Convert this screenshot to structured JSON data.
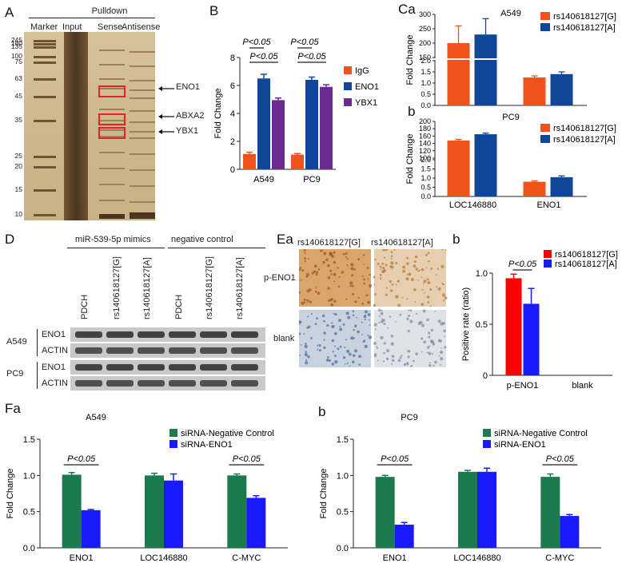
{
  "panelA": {
    "label": "A",
    "title": "Pulldown",
    "lanes": [
      "Marker",
      "Input",
      "Sense",
      "Antisense"
    ],
    "markers": [
      "245",
      "180",
      "135",
      "100",
      "75",
      "63",
      "45",
      "35",
      "25",
      "20",
      "15",
      "10"
    ],
    "bands": [
      "ENO1",
      "ABXA2",
      "YBX1"
    ]
  },
  "panelB": {
    "label": "B",
    "chart_data": {
      "type": "bar",
      "ylabel": "Fold Change",
      "categories": [
        "A549",
        "PC9"
      ],
      "series": [
        {
          "name": "IgG",
          "values": [
            1.1,
            1.05
          ],
          "errors": [
            0.12,
            0.08
          ],
          "color": "#f0521e"
        },
        {
          "name": "ENO1",
          "values": [
            6.5,
            6.4
          ],
          "errors": [
            0.3,
            0.2
          ],
          "color": "#10469a"
        },
        {
          "name": "YBX1",
          "values": [
            4.95,
            5.9
          ],
          "errors": [
            0.15,
            0.15
          ],
          "color": "#6a2c91"
        }
      ],
      "ylim": [
        0,
        8
      ],
      "yticks": [
        "0",
        "2",
        "4",
        "6",
        "8"
      ],
      "annotations": [
        "P<0.05",
        "P<0.05",
        "P<0.05",
        "P<0.05"
      ]
    }
  },
  "panelC": {
    "label": "Ca",
    "sublabel": "b",
    "charts": [
      {
        "title": "A549",
        "type": "bar",
        "ylabel": "Fold Change",
        "categories": [
          "LOC146880",
          "ENO1"
        ],
        "series": [
          {
            "name": "rs140618127[G]",
            "values": [
              200,
              1.25
            ],
            "errors": [
              60,
              0.07
            ],
            "color": "#f0521e"
          },
          {
            "name": "rs140618127[A]",
            "values": [
              230,
              1.4
            ],
            "errors": [
              55,
              0.1
            ],
            "color": "#10469a"
          }
        ],
        "yticks_top": [
          "150",
          "200",
          "250",
          "300"
        ],
        "yticks_bottom": [
          "0.0",
          "0.5",
          "1.0",
          "1.5",
          "2.0"
        ]
      },
      {
        "title": "PC9",
        "type": "bar",
        "ylabel": "Fold Change",
        "categories": [
          "LOC146880",
          "ENO1"
        ],
        "series": [
          {
            "name": "rs140618127[G]",
            "values": [
              148,
              0.8
            ],
            "errors": [
              3,
              0.05
            ],
            "color": "#f0521e"
          },
          {
            "name": "rs140618127[A]",
            "values": [
              165,
              1.05
            ],
            "errors": [
              3,
              0.07
            ],
            "color": "#10469a"
          }
        ],
        "yticks_top": [
          "100",
          "120",
          "140",
          "160",
          "180",
          "200"
        ],
        "yticks_bottom": [
          "0.0",
          "0.5",
          "1.0",
          "1.5",
          "2.0"
        ]
      }
    ]
  },
  "panelD": {
    "label": "D",
    "group1": "miR-539-5p mimics",
    "group2": "negative control",
    "lanes": [
      "PDCH",
      "rs140618127[G]",
      "rs140618127[A]",
      "PDCH",
      "rs140618127[G]",
      "rs140618127[A]"
    ],
    "cells": [
      "A549",
      "PC9"
    ],
    "proteins": [
      "ENO1",
      "ACTIN"
    ]
  },
  "panelE": {
    "label": "Ea",
    "sublabel": "b",
    "cols": [
      "rs140618127[G]",
      "rs140618127[A]"
    ],
    "rows": [
      "p-ENO1",
      "blank"
    ],
    "chart_data": {
      "type": "bar",
      "ylabel": "Positive rate (ratio)",
      "categories": [
        "p-ENO1",
        "blank"
      ],
      "series": [
        {
          "name": "rs140618127[G]",
          "values": [
            0.95,
            0
          ],
          "errors": [
            0.04,
            0
          ],
          "color": "#ff0000"
        },
        {
          "name": "rs140618127[A]",
          "values": [
            0.7,
            0
          ],
          "errors": [
            0.15,
            0
          ],
          "color": "#1a1aff"
        }
      ],
      "ylim": [
        0,
        1
      ],
      "yticks": [
        "0",
        "0.5",
        "1.0"
      ],
      "annotations": [
        "P<0.05"
      ]
    }
  },
  "panelF": {
    "label": "Fa",
    "sublabel": "b",
    "charts": [
      {
        "title": "A549",
        "type": "bar",
        "ylabel": "Fold Change",
        "categories": [
          "ENO1",
          "LOC146880",
          "C-MYC"
        ],
        "series": [
          {
            "name": "siRNA-Negative Control",
            "values": [
              1.01,
              1.0,
              1.0
            ],
            "errors": [
              0.03,
              0.03,
              0.02
            ],
            "color": "#1b7a4e"
          },
          {
            "name": "siRNA-ENO1",
            "values": [
              0.52,
              0.93,
              0.69
            ],
            "errors": [
              0.01,
              0.09,
              0.03
            ],
            "color": "#1a1aff"
          }
        ],
        "ylim": [
          0,
          1.5
        ],
        "yticks": [
          "0.0",
          "0.5",
          "1.0",
          "1.5"
        ],
        "annotations": [
          "P<0.05",
          "P<0.05"
        ]
      },
      {
        "title": "PC9",
        "type": "bar",
        "ylabel": "Fold Change",
        "categories": [
          "ENO1",
          "LOC146880",
          "C-MYC"
        ],
        "series": [
          {
            "name": "siRNA-Negative Control",
            "values": [
              0.98,
              1.05,
              0.98
            ],
            "errors": [
              0.02,
              0.02,
              0.04
            ],
            "color": "#1b7a4e"
          },
          {
            "name": "siRNA-ENO1",
            "values": [
              0.32,
              1.05,
              0.44
            ],
            "errors": [
              0.03,
              0.05,
              0.02
            ],
            "color": "#1a1aff"
          }
        ],
        "ylim": [
          0,
          1.5
        ],
        "yticks": [
          "0.0",
          "0.5",
          "1.0",
          "1.5"
        ],
        "annotations": [
          "P<0.05",
          "P<0.05"
        ]
      }
    ]
  }
}
